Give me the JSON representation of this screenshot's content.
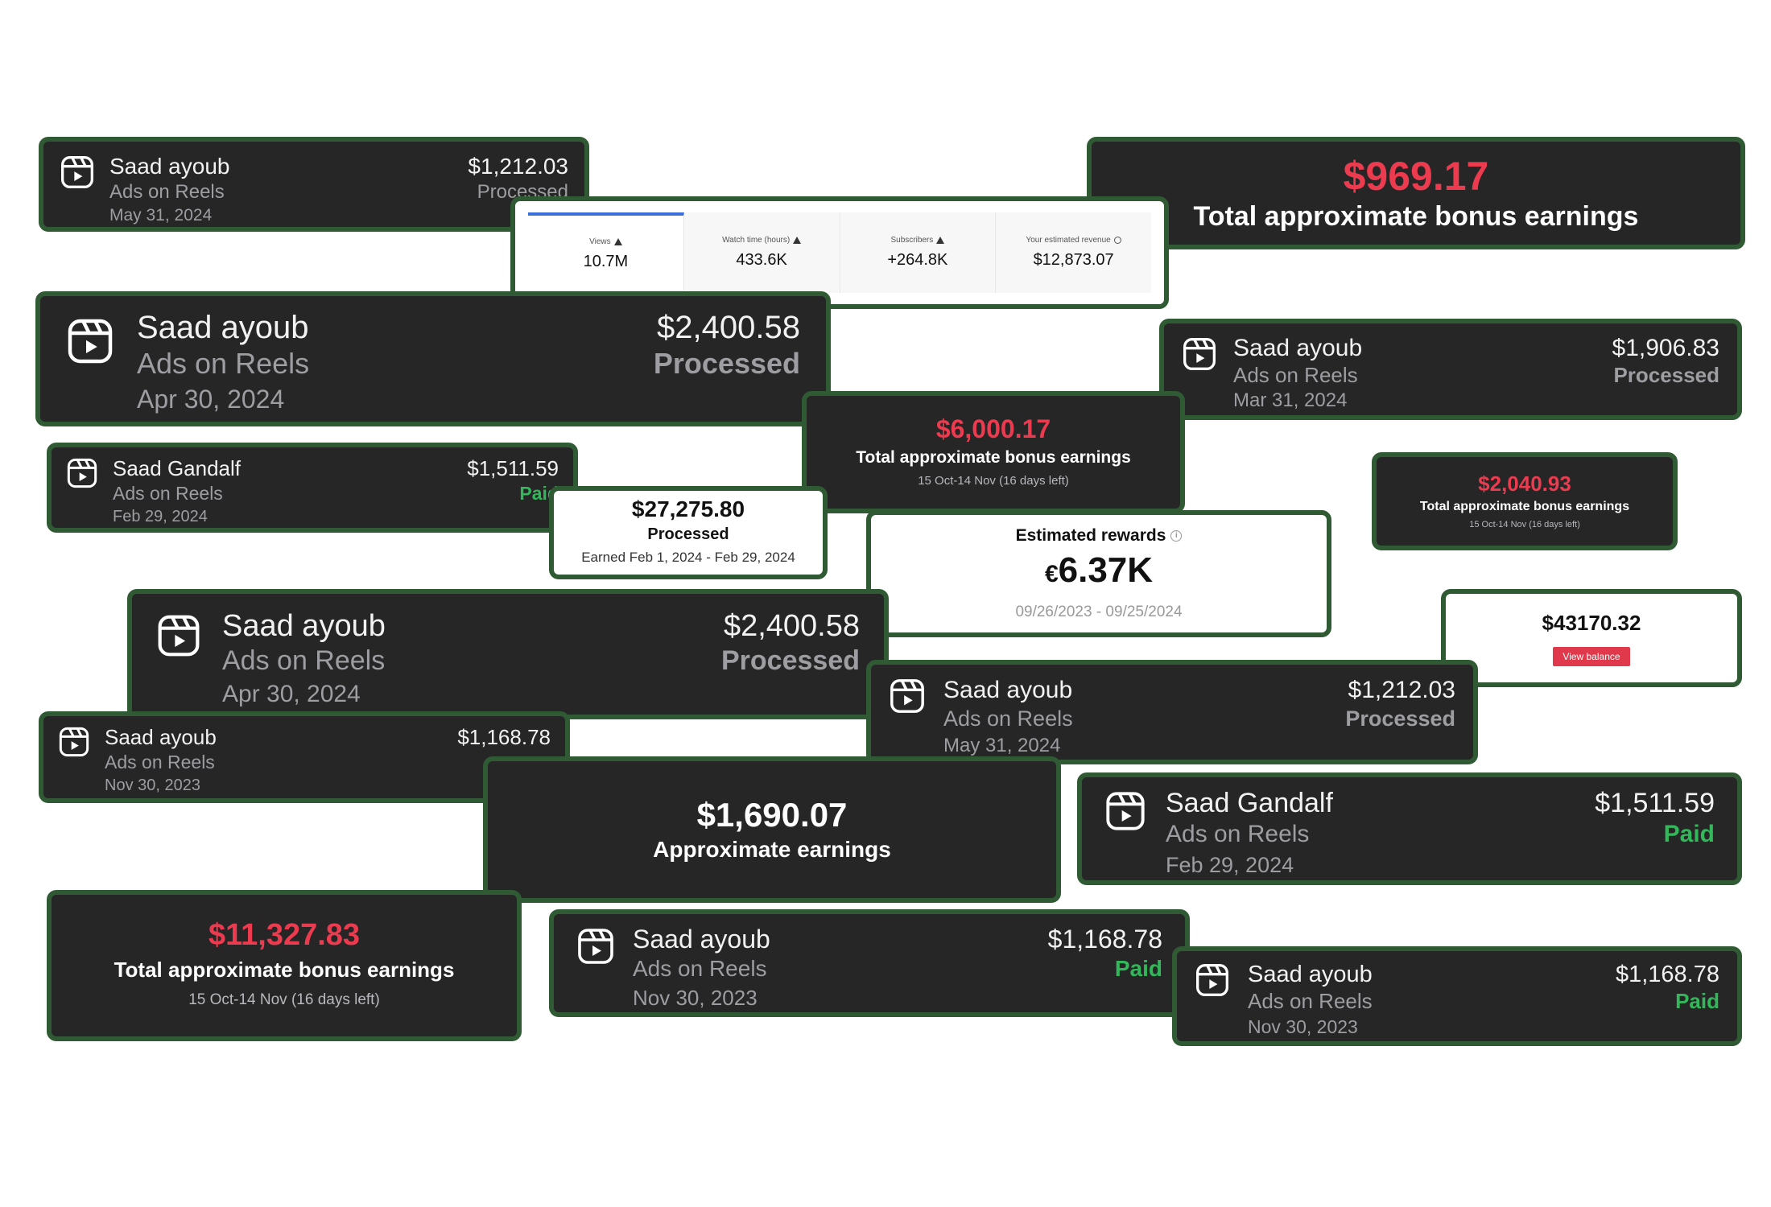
{
  "colors": {
    "card_bg": "#262627",
    "card_border": "#2f5a33",
    "bonus_red": "#ec3b4f",
    "paid_green": "#32b85a",
    "muted_text": "#9d9da2",
    "view_balance_red": "#e0394b"
  },
  "icons": {
    "reels": "reels-icon",
    "warning": "warning-icon",
    "clock": "clock-icon",
    "info": "info-icon"
  },
  "payouts": [
    {
      "name": "Saad ayoub",
      "source": "Ads on Reels",
      "date": "May 31, 2024",
      "amount": "$1,212.03",
      "status": "Processed"
    },
    {
      "name": "Saad ayoub",
      "source": "Ads on Reels",
      "date": "Apr 30, 2024",
      "amount": "$2,400.58",
      "status": "Processed"
    },
    {
      "name": "Saad Gandalf",
      "source": "Ads on Reels",
      "date": "Feb 29, 2024",
      "amount": "$1,511.59",
      "status": "Paid"
    },
    {
      "name": "Saad ayoub",
      "source": "Ads on Reels",
      "date": "Apr 30, 2024",
      "amount": "$2,400.58",
      "status": "Processed"
    },
    {
      "name": "Saad ayoub",
      "source": "Ads on Reels",
      "date": "Nov 30, 2023",
      "amount": "$1,168.78",
      "status": ""
    },
    {
      "name": "Saad ayoub",
      "source": "Ads on Reels",
      "date": "Mar 31, 2024",
      "amount": "$1,906.83",
      "status": "Processed"
    },
    {
      "name": "Saad ayoub",
      "source": "Ads on Reels",
      "date": "May 31, 2024",
      "amount": "$1,212.03",
      "status": "Processed"
    },
    {
      "name": "Saad Gandalf",
      "source": "Ads on Reels",
      "date": "Feb 29, 2024",
      "amount": "$1,511.59",
      "status": "Paid"
    },
    {
      "name": "Saad ayoub",
      "source": "Ads on Reels",
      "date": "Nov 30, 2023",
      "amount": "$1,168.78",
      "status": "Paid"
    },
    {
      "name": "Saad ayoub",
      "source": "Ads on Reels",
      "date": "Nov 30, 2023",
      "amount": "$1,168.78",
      "status": "Paid"
    }
  ],
  "bonuses": [
    {
      "amount": "$969.17",
      "label": "Total approximate bonus earnings",
      "range": ""
    },
    {
      "amount": "$6,000.17",
      "label": "Total approximate bonus earnings",
      "range": "15 Oct-14 Nov (16 days left)"
    },
    {
      "amount": "$2,040.93",
      "label": "Total approximate bonus earnings",
      "range": "15 Oct-14 Nov (16 days left)"
    },
    {
      "amount": "$11,327.83",
      "label": "Total approximate bonus earnings",
      "range": "15 Oct-14 Nov (16 days left)"
    }
  ],
  "approx_earnings": {
    "amount": "$1,690.07",
    "label": "Approximate earnings"
  },
  "analytics": {
    "metrics": [
      {
        "label": "Views",
        "value": "10.7M"
      },
      {
        "label": "Watch time (hours)",
        "value": "433.6K"
      },
      {
        "label": "Subscribers",
        "value": "+264.8K"
      },
      {
        "label": "Your estimated revenue",
        "value": "$12,873.07"
      }
    ]
  },
  "processed_total": {
    "amount": "$27,275.80",
    "status": "Processed",
    "period": "Earned Feb 1, 2024 - Feb 29, 2024"
  },
  "estimated_rewards": {
    "label": "Estimated rewards",
    "currency": "€",
    "value": "6.37K",
    "range": "09/26/2023 - 09/25/2024"
  },
  "balance": {
    "amount": "$43170.32",
    "button": "View balance"
  }
}
